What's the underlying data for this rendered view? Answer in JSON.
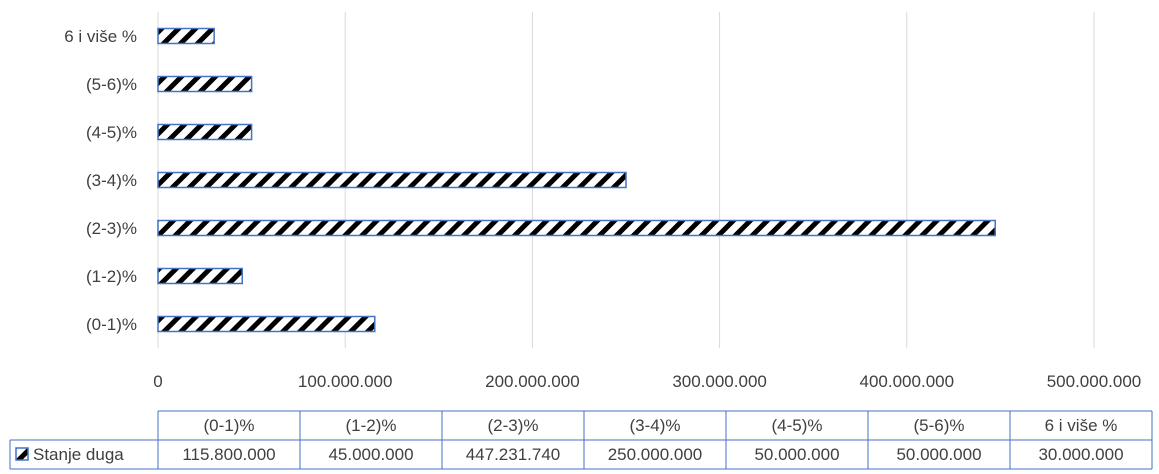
{
  "chart_data": {
    "type": "bar",
    "orientation": "horizontal",
    "categories": [
      "(0-1)%",
      "(1-2)%",
      "(2-3)%",
      "(3-4)%",
      "(4-5)%",
      "(5-6)%",
      "6 i više %"
    ],
    "series": [
      {
        "name": "Stanje duga",
        "values": [
          115800000,
          45000000,
          447231740,
          250000000,
          50000000,
          50000000,
          30000000
        ],
        "value_labels": [
          "115.800.000",
          "45.000.000",
          "447.231.740",
          "250.000.000",
          "50.000.000",
          "50.000.000",
          "30.000.000"
        ]
      }
    ],
    "xlim": [
      0,
      500000000
    ],
    "x_ticks": [
      0,
      100000000,
      200000000,
      300000000,
      400000000,
      500000000
    ],
    "x_tick_labels": [
      "0",
      "100.000.000",
      "200.000.000",
      "300.000.000",
      "400.000.000",
      "500.000.000"
    ],
    "grid": true,
    "data_table": true,
    "colors": {
      "bar_outline": "#4472c4",
      "hatch": "#000000",
      "grid": "#d9d9d9",
      "table_border": "#4472c4",
      "text": "#404040"
    }
  }
}
